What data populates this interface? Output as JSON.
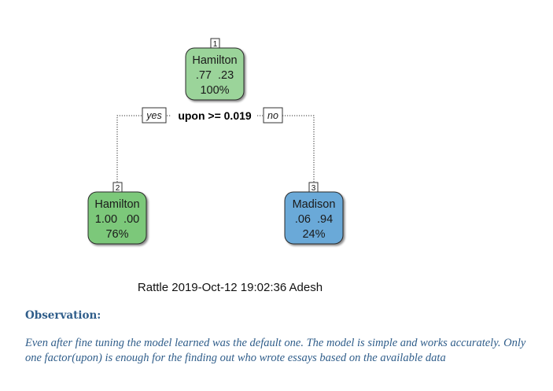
{
  "tree": {
    "nodes": [
      {
        "id": "1",
        "class": "Hamilton",
        "probs": ".77  .23",
        "percent": "100%",
        "color": "#9bd49a"
      },
      {
        "id": "2",
        "class": "Hamilton",
        "probs": "1.00  .00",
        "percent": "76%",
        "color": "#7cc87a"
      },
      {
        "id": "3",
        "class": "Madison",
        "probs": ".06  .94",
        "percent": "24%",
        "color": "#6aa9d8"
      }
    ],
    "split": {
      "rule": "upon >= 0.019",
      "yes_label": "yes",
      "no_label": "no"
    }
  },
  "caption": "Rattle 2019-Oct-12 19:02:36 Adesh",
  "observation": {
    "title": "Observation:",
    "text": "Even after fine tuning the model learned was the default one. The model is simple and works accurately. Only one factor(upon) is enough for the finding out who wrote essays based on the available data"
  }
}
